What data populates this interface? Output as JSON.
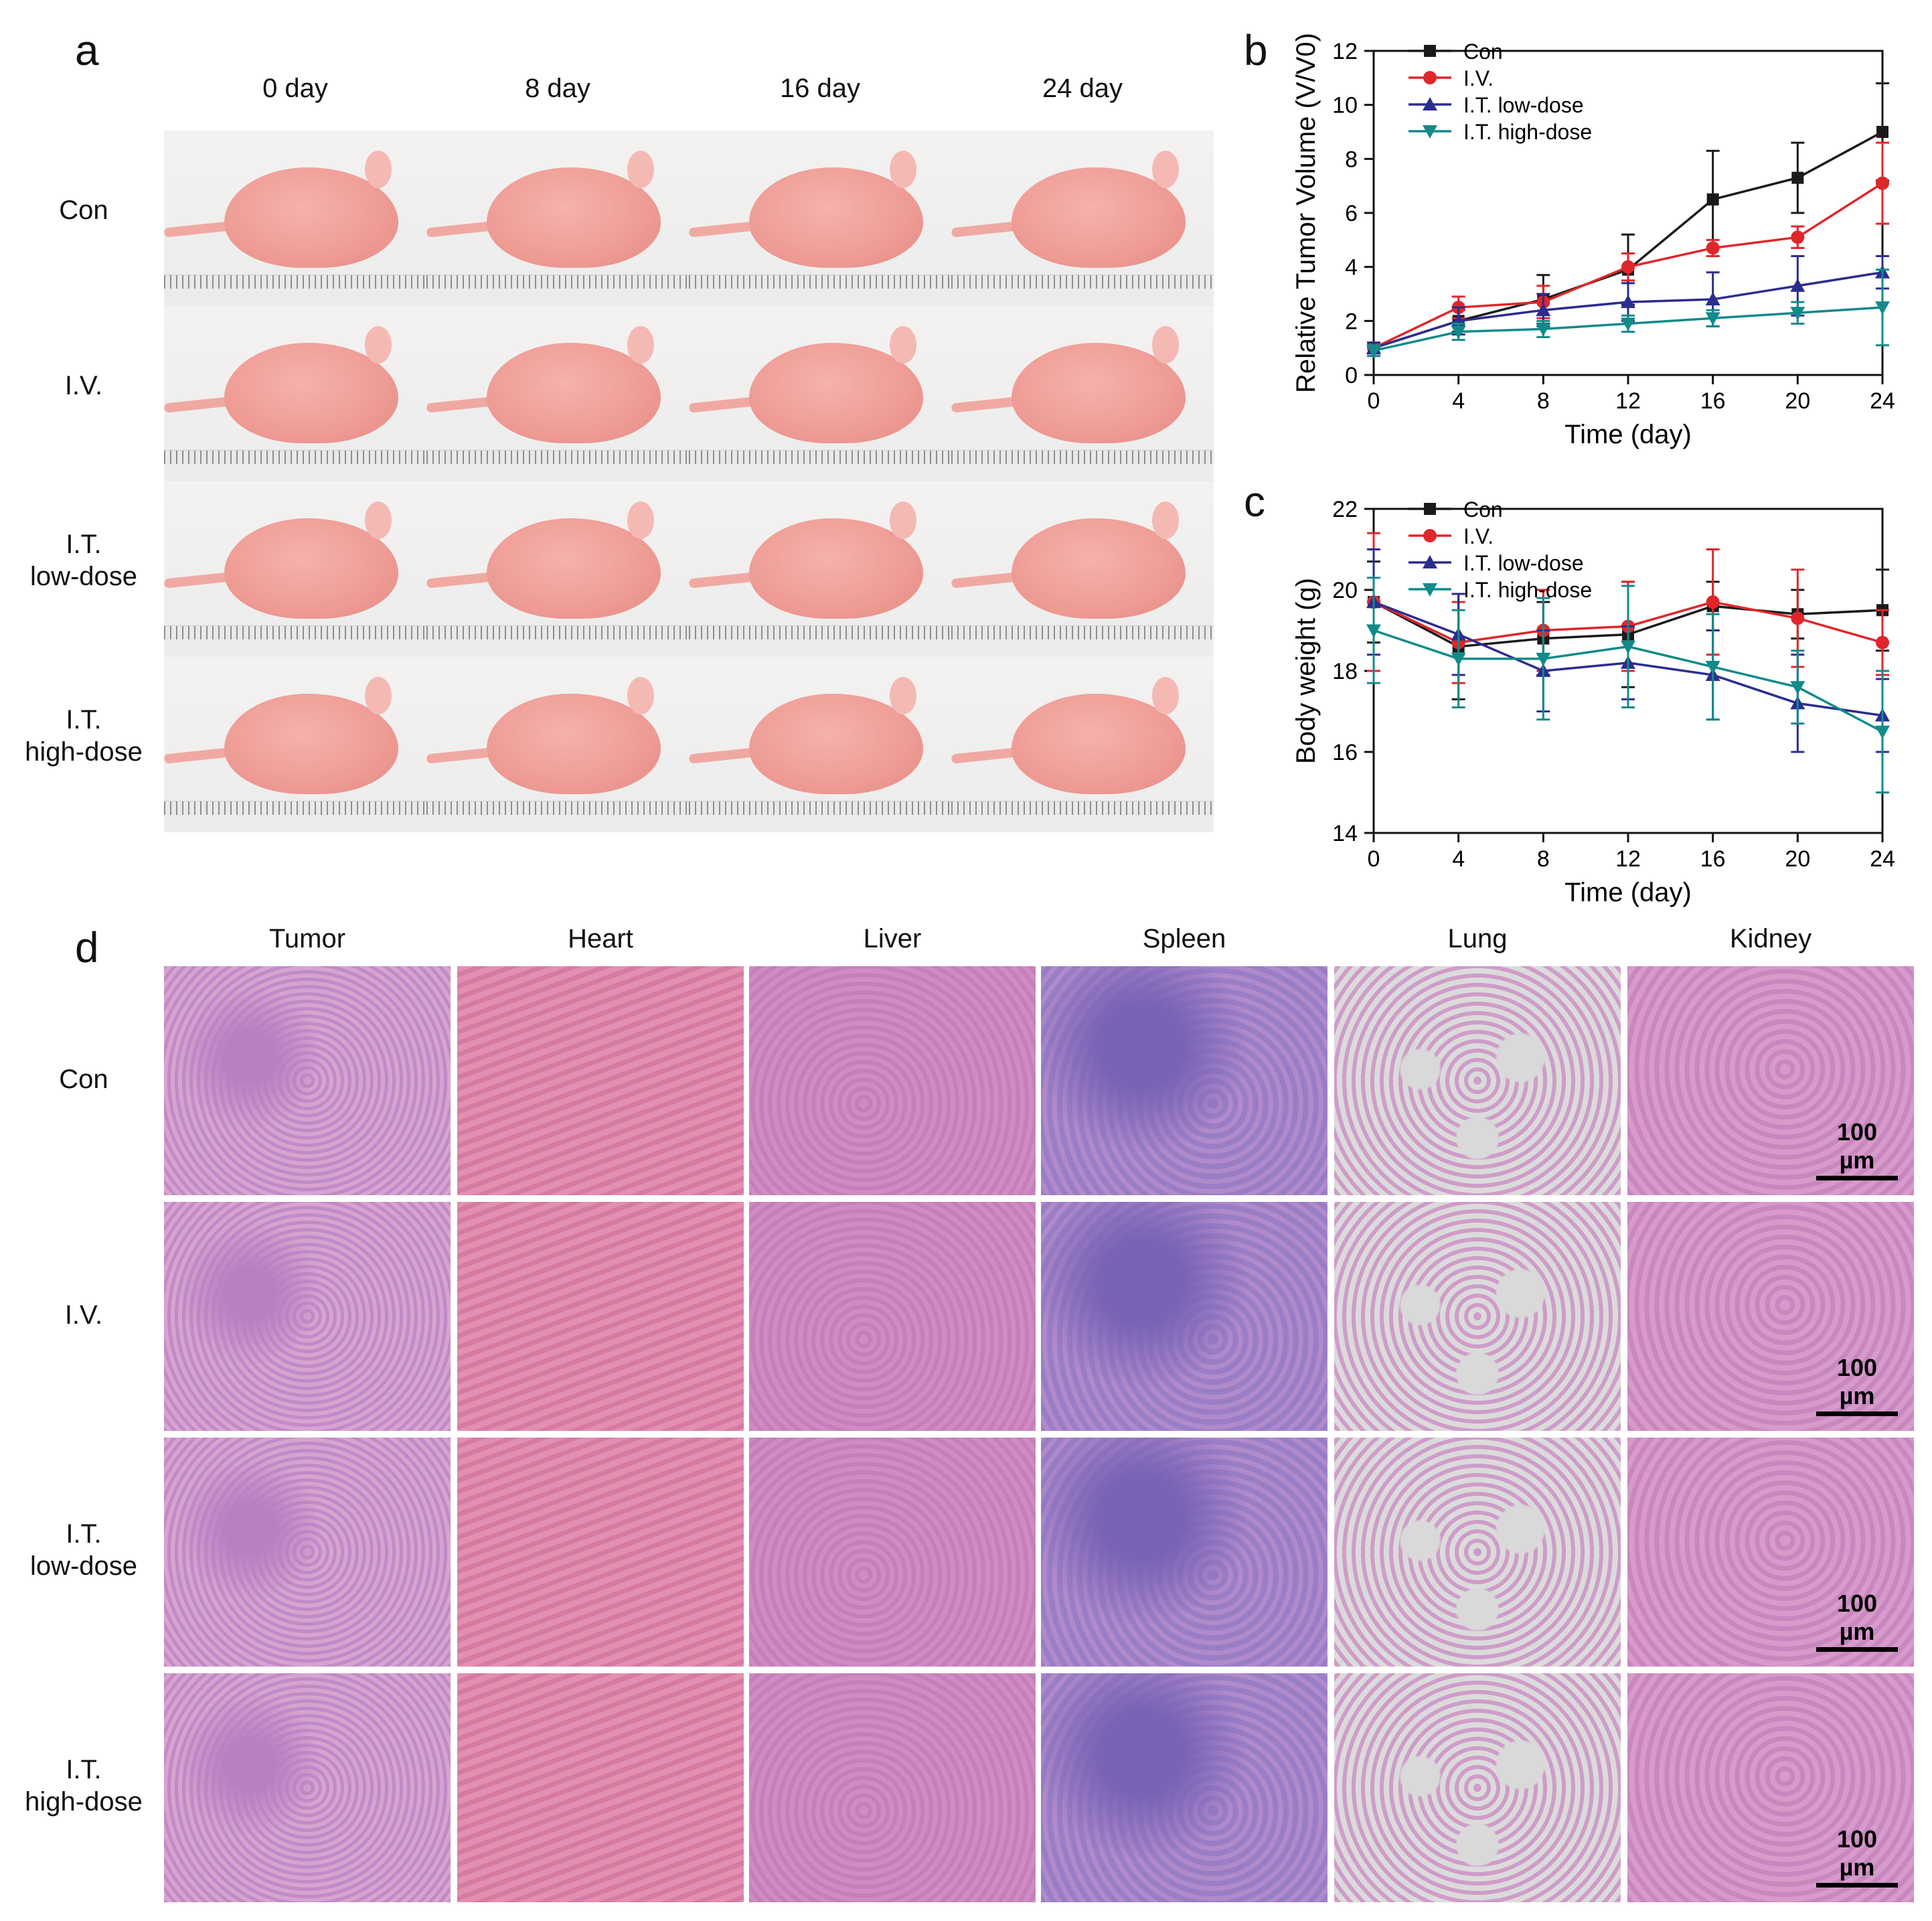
{
  "panels": {
    "a": "a",
    "b": "b",
    "c": "c",
    "d": "d"
  },
  "photos": {
    "days": [
      "0 day",
      "8 day",
      "16 day",
      "24 day"
    ],
    "groups": [
      "Con",
      "I.V.",
      "I.T. low-dose",
      "I.T. high-dose"
    ]
  },
  "histology": {
    "organs": [
      "Tumor",
      "Heart",
      "Liver",
      "Spleen",
      "Lung",
      "Kidney"
    ],
    "groups": [
      "Con",
      "I.V.",
      "I.T. low-dose",
      "I.T. high-dose"
    ],
    "scale_bar": "100 µm"
  },
  "chart_data": [
    {
      "type": "line",
      "panel": "b",
      "xlabel": "Time (day)",
      "ylabel": "Relative Tumor Volume (V/V0)",
      "x": [
        0,
        4,
        8,
        12,
        16,
        20,
        24
      ],
      "xlim": [
        0,
        24
      ],
      "ylim": [
        0,
        12
      ],
      "yticks": [
        0,
        2,
        4,
        6,
        8,
        10,
        12
      ],
      "xticks": [
        0,
        4,
        8,
        12,
        16,
        20,
        24
      ],
      "legend_position": "top-left",
      "series": [
        {
          "name": "Con",
          "color": "#1a1a1a",
          "marker": "square",
          "values": [
            1.0,
            2.0,
            2.8,
            3.9,
            6.5,
            7.3,
            9.0
          ],
          "error": [
            0.2,
            0.4,
            0.9,
            1.3,
            1.8,
            1.3,
            1.8
          ]
        },
        {
          "name": "I.V.",
          "color": "#e0262b",
          "marker": "circle",
          "values": [
            1.0,
            2.5,
            2.7,
            4.0,
            4.7,
            5.1,
            7.1
          ],
          "error": [
            0.2,
            0.4,
            0.6,
            0.5,
            0.3,
            0.4,
            1.5
          ]
        },
        {
          "name": "I.T. low-dose",
          "color": "#2b2d8f",
          "marker": "triangle-up",
          "values": [
            1.0,
            2.0,
            2.4,
            2.7,
            2.8,
            3.3,
            3.8
          ],
          "error": [
            0.2,
            0.5,
            0.6,
            0.7,
            1.0,
            1.1,
            0.6
          ]
        },
        {
          "name": "I.T. high-dose",
          "color": "#138a8a",
          "marker": "triangle-down",
          "values": [
            0.9,
            1.6,
            1.7,
            1.9,
            2.1,
            2.3,
            2.5
          ],
          "error": [
            0.2,
            0.3,
            0.3,
            0.3,
            0.3,
            0.4,
            1.4
          ]
        }
      ]
    },
    {
      "type": "line",
      "panel": "c",
      "xlabel": "Time (day)",
      "ylabel": "Body weight (g)",
      "x": [
        0,
        4,
        8,
        12,
        16,
        20,
        24
      ],
      "xlim": [
        0,
        24
      ],
      "ylim": [
        14,
        22
      ],
      "yticks": [
        14,
        16,
        18,
        20,
        22
      ],
      "xticks": [
        0,
        4,
        8,
        12,
        16,
        20,
        24
      ],
      "legend_position": "top-left",
      "series": [
        {
          "name": "Con",
          "color": "#1a1a1a",
          "marker": "square",
          "values": [
            19.7,
            18.6,
            18.8,
            18.9,
            19.6,
            19.4,
            19.5
          ],
          "error": [
            1.0,
            1.3,
            0.9,
            1.3,
            0.6,
            0.6,
            1.0
          ]
        },
        {
          "name": "I.V.",
          "color": "#e0262b",
          "marker": "circle",
          "values": [
            19.7,
            18.7,
            19.0,
            19.1,
            19.7,
            19.3,
            18.7
          ],
          "error": [
            1.7,
            1.0,
            1.0,
            1.1,
            1.3,
            1.2,
            0.8
          ]
        },
        {
          "name": "I.T. low-dose",
          "color": "#2b2d8f",
          "marker": "triangle-up",
          "values": [
            19.7,
            18.9,
            18.0,
            18.2,
            17.9,
            17.2,
            16.9
          ],
          "error": [
            1.3,
            1.0,
            1.0,
            0.9,
            1.1,
            1.2,
            0.9
          ]
        },
        {
          "name": "I.T. high-dose",
          "color": "#138a8a",
          "marker": "triangle-down",
          "values": [
            19.0,
            18.3,
            18.3,
            18.6,
            18.1,
            17.6,
            16.5
          ],
          "error": [
            1.3,
            1.2,
            1.5,
            1.5,
            1.3,
            0.9,
            1.5
          ]
        }
      ]
    }
  ]
}
